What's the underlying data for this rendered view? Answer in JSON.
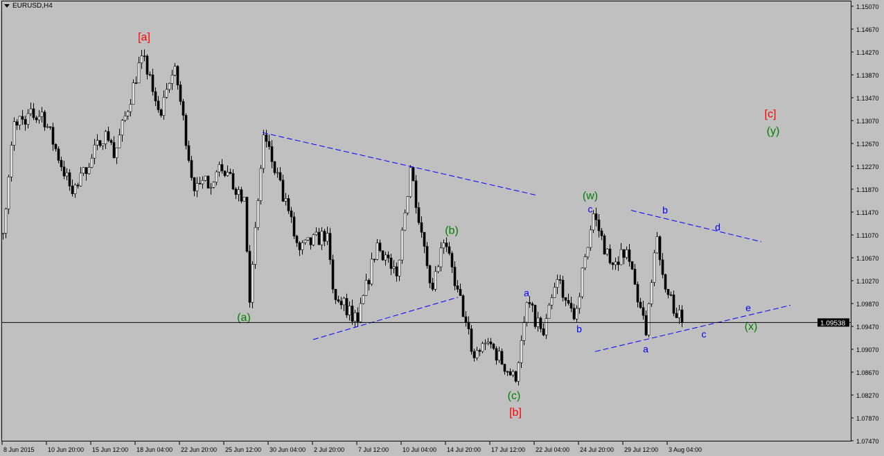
{
  "header": {
    "symbol_title": "EURUSD,H4"
  },
  "colors": {
    "background": "#c0c0c0",
    "candle": "#000000",
    "bull_body": "#ffffff",
    "trendline": "#0000ff",
    "red_label": "#ff0000",
    "green_label": "#008000",
    "blue_label": "#0000ff"
  },
  "chart_data": {
    "type": "candlestick",
    "title": "EURUSD,H4",
    "ylim": [
      1.0747,
      1.1507
    ],
    "y_tick_labels": [
      "1.15070",
      "1.14670",
      "1.14270",
      "1.13870",
      "1.13470",
      "1.13070",
      "1.12670",
      "1.12270",
      "1.11870",
      "1.11470",
      "1.11070",
      "1.10670",
      "1.10270",
      "1.09870",
      "1.09470",
      "1.09070",
      "1.08670",
      "1.08270",
      "1.07870",
      "1.07470"
    ],
    "x_tick_labels": [
      "8 Jun 2015",
      "10 Jun 20:00",
      "15 Jun 12:00",
      "18 Jun 04:00",
      "22 Jun 20:00",
      "25 Jun 12:00",
      "30 Jun 04:00",
      "2 Jul 20:00",
      "7 Jul 12:00",
      "10 Jul 04:00",
      "14 Jul 20:00",
      "17 Jul 12:00",
      "22 Jul 04:00",
      "24 Jul 20:00",
      "29 Jul 12:00",
      "3 Aug 04:00"
    ],
    "bars_per_x_tick": 16,
    "last_price": "1.09538",
    "approx_price_path_bar_price": [
      [
        0,
        1.111
      ],
      [
        4,
        1.1305
      ],
      [
        14,
        1.1322
      ],
      [
        25,
        1.1179
      ],
      [
        37,
        1.1288
      ],
      [
        40,
        1.1242
      ],
      [
        50,
        1.142
      ],
      [
        57,
        1.1316
      ],
      [
        62,
        1.1402
      ],
      [
        69,
        1.1184
      ],
      [
        79,
        1.1219
      ],
      [
        87,
        1.1173
      ],
      [
        89,
        1.0989
      ],
      [
        94,
        1.1282
      ],
      [
        107,
        1.1081
      ],
      [
        117,
        1.111
      ],
      [
        119,
        1.1012
      ],
      [
        128,
        1.0955
      ],
      [
        135,
        1.1093
      ],
      [
        142,
        1.1035
      ],
      [
        147,
        1.1225
      ],
      [
        152,
        1.1087
      ],
      [
        155,
        1.1012
      ],
      [
        159,
        1.1093
      ],
      [
        164,
        1.1012
      ],
      [
        170,
        1.0892
      ],
      [
        175,
        1.092
      ],
      [
        185,
        1.0851
      ],
      [
        189,
        1.0989
      ],
      [
        195,
        1.0932
      ],
      [
        200,
        1.1029
      ],
      [
        206,
        1.096
      ],
      [
        213,
        1.1144
      ],
      [
        219,
        1.1058
      ],
      [
        225,
        1.1081
      ],
      [
        232,
        1.0932
      ],
      [
        236,
        1.1104
      ],
      [
        239,
        1.1012
      ],
      [
        245,
        1.09538
      ]
    ],
    "trendlines_bar_price": [
      [
        [
          93.75,
          1.1286
        ],
        [
          193,
          1.1176
        ]
      ],
      [
        [
          112,
          1.0924
        ],
        [
          164.25,
          1.0998
        ]
      ],
      [
        [
          226.75,
          1.115
        ],
        [
          273.75,
          1.1095
        ]
      ],
      [
        [
          213.75,
          1.0903
        ],
        [
          284.25,
          1.0984
        ]
      ]
    ],
    "wave_labels": [
      {
        "text": "[a]",
        "color": "red",
        "bar": 51,
        "price": 1.1454
      },
      {
        "text": "(a)",
        "color": "green",
        "bar": 87,
        "price": 1.0964
      },
      {
        "text": "(b)",
        "color": "green",
        "bar": 162,
        "price": 1.1116
      },
      {
        "text": "(c)",
        "color": "green",
        "bar": 184.5,
        "price": 1.0827
      },
      {
        "text": "[b]",
        "color": "red",
        "bar": 185,
        "price": 1.0798
      },
      {
        "text": "(w)",
        "color": "green",
        "bar": 212,
        "price": 1.1177
      },
      {
        "text": "c",
        "color": "blue",
        "bar": 212,
        "price": 1.1156
      },
      {
        "text": "a",
        "color": "blue",
        "bar": 189,
        "price": 1.1007
      },
      {
        "text": "b",
        "color": "blue",
        "bar": 208,
        "price": 1.0944
      },
      {
        "text": "b",
        "color": "blue",
        "bar": 239,
        "price": 1.1152
      },
      {
        "text": "d",
        "color": "blue",
        "bar": 258,
        "price": 1.1122
      },
      {
        "text": "a",
        "color": "blue",
        "bar": 232,
        "price": 1.0909
      },
      {
        "text": "c",
        "color": "blue",
        "bar": 253,
        "price": 1.0935
      },
      {
        "text": "e",
        "color": "blue",
        "bar": 269,
        "price": 1.0981
      },
      {
        "text": "(x)",
        "color": "green",
        "bar": 270,
        "price": 1.0948
      },
      {
        "text": "[c]",
        "color": "red",
        "bar": 277,
        "price": 1.132
      },
      {
        "text": "(y)",
        "color": "green",
        "bar": 278,
        "price": 1.129
      }
    ]
  }
}
